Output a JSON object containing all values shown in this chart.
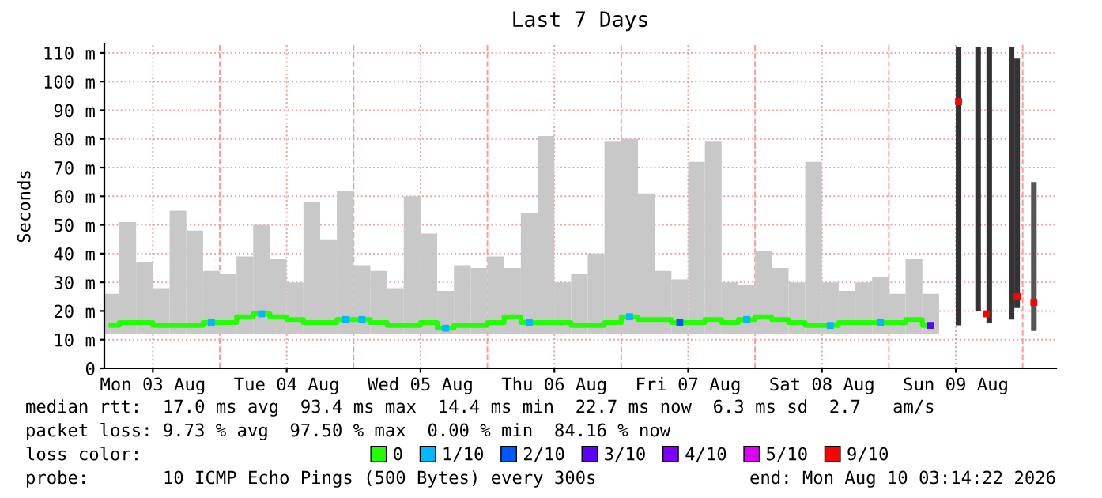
{
  "chart_data": {
    "type": "bar",
    "title": "Last 7 Days",
    "ylabel": "Seconds",
    "legend_title": "loss color:",
    "legend": "bottom",
    "grid": true,
    "xlim": [
      "2026-08-03T03:18",
      "2026-08-10T06:00"
    ],
    "xticks": [
      {
        "value": "2026-08-03T12:00",
        "label": "Mon 03 Aug"
      },
      {
        "value": "2026-08-04T12:00",
        "label": "Tue 04 Aug"
      },
      {
        "value": "2026-08-05T12:00",
        "label": "Wed 05 Aug"
      },
      {
        "value": "2026-08-06T12:00",
        "label": "Thu 06 Aug"
      },
      {
        "value": "2026-08-07T12:00",
        "label": "Fri 07 Aug"
      },
      {
        "value": "2026-08-08T12:00",
        "label": "Sat 08 Aug"
      },
      {
        "value": "2026-08-09T12:00",
        "label": "Sun 09 Aug"
      }
    ],
    "ylim": [
      0,
      113
    ],
    "yticks": [
      0,
      {
        "value": 10,
        "label": "10 m"
      },
      {
        "value": 20,
        "label": "20 m"
      },
      {
        "value": 30,
        "label": "30 m"
      },
      {
        "value": 40,
        "label": "40 m"
      },
      {
        "value": 50,
        "label": "50 m"
      },
      {
        "value": 60,
        "label": "60 m"
      },
      {
        "value": 70,
        "label": "70 m"
      },
      {
        "value": 80,
        "label": "80 m"
      },
      {
        "value": 90,
        "label": "90 m"
      },
      {
        "value": 100,
        "label": "100 m"
      },
      {
        "value": 110,
        "label": "110 m"
      }
    ],
    "ref_lines": [
      {
        "axis": "x",
        "value": "2026-08-04T00:00",
        "color": "#ff9999",
        "line_style": "dashed"
      },
      {
        "axis": "x",
        "value": "2026-08-05T00:00",
        "color": "#ff9999",
        "line_style": "dashed"
      },
      {
        "axis": "x",
        "value": "2026-08-06T00:00",
        "color": "#ff9999",
        "line_style": "dashed"
      },
      {
        "axis": "x",
        "value": "2026-08-07T00:00",
        "color": "#ff9999",
        "line_style": "dashed"
      },
      {
        "axis": "x",
        "value": "2026-08-08T00:00",
        "color": "#ff9999",
        "line_style": "dashed"
      },
      {
        "axis": "x",
        "value": "2026-08-09T00:00",
        "color": "#ff9999",
        "line_style": "dashed"
      },
      {
        "axis": "x",
        "value": "2026-08-10T00:00",
        "color": "#ff9999",
        "line_style": "dashed"
      }
    ],
    "series": [
      {
        "color": "#c8c8c8",
        "x": [
          "2026-08-03T04:30",
          "2026-08-03T07:30",
          "2026-08-03T10:30",
          "2026-08-03T13:30",
          "2026-08-03T16:30",
          "2026-08-03T19:30",
          "2026-08-03T22:30",
          "2026-08-04T01:30",
          "2026-08-04T04:30",
          "2026-08-04T07:30",
          "2026-08-04T10:30",
          "2026-08-04T13:30",
          "2026-08-04T16:30",
          "2026-08-04T19:30",
          "2026-08-04T22:30",
          "2026-08-05T01:30",
          "2026-08-05T04:30",
          "2026-08-05T07:30",
          "2026-08-05T10:30",
          "2026-08-05T13:30",
          "2026-08-05T16:30",
          "2026-08-05T19:30",
          "2026-08-05T22:30",
          "2026-08-06T01:30",
          "2026-08-06T04:30",
          "2026-08-06T07:30",
          "2026-08-06T10:30",
          "2026-08-06T13:30",
          "2026-08-06T16:30",
          "2026-08-06T19:30",
          "2026-08-06T22:30",
          "2026-08-07T01:30",
          "2026-08-07T04:30",
          "2026-08-07T07:30",
          "2026-08-07T10:30",
          "2026-08-07T13:30",
          "2026-08-07T16:30",
          "2026-08-07T19:30",
          "2026-08-07T22:30",
          "2026-08-08T01:30",
          "2026-08-08T04:30",
          "2026-08-08T07:30",
          "2026-08-08T10:30",
          "2026-08-08T13:30",
          "2026-08-08T16:30",
          "2026-08-08T19:30",
          "2026-08-08T22:30",
          "2026-08-09T01:30",
          "2026-08-09T04:30",
          "2026-08-09T07:30"
        ],
        "base": [
          12,
          12,
          12,
          12,
          12,
          12,
          12,
          12,
          12,
          12,
          12,
          12,
          12,
          12,
          12,
          12,
          12,
          12,
          12,
          12,
          12,
          12,
          12,
          12,
          12,
          12,
          12,
          12,
          12,
          12,
          12,
          12,
          12,
          12,
          12,
          12,
          12,
          12,
          12,
          12,
          12,
          12,
          12,
          12,
          12,
          12,
          12,
          12,
          12,
          12
        ],
        "values": [
          14,
          39,
          25,
          16,
          43,
          36,
          22,
          21,
          27,
          38,
          26,
          18,
          46,
          33,
          50,
          24,
          22,
          16,
          48,
          35,
          15,
          24,
          23,
          27,
          23,
          42,
          69,
          18,
          21,
          28,
          67,
          68,
          49,
          22,
          19,
          60,
          67,
          18,
          17,
          29,
          23,
          18,
          60,
          18,
          15,
          18,
          20,
          14,
          26,
          14
        ]
      },
      {
        "type": "bar",
        "colors": [
          "#333333",
          "#333333",
          "#333333",
          "#333333",
          "#333333",
          "#555555"
        ],
        "x": [
          "2026-08-09T12:30",
          "2026-08-09T16:00",
          "2026-08-09T18:00",
          "2026-08-09T22:00",
          "2026-08-09T23:00",
          "2026-08-10T02:00"
        ],
        "base": [
          15,
          20,
          16,
          17,
          21,
          13
        ],
        "values": [
          97,
          92,
          96,
          95,
          87,
          52
        ]
      },
      {
        "type": "line",
        "name": "0",
        "color": "#22ff00",
        "marker": "none",
        "x": [
          "2026-08-03T04:30",
          "2026-08-03T07:30",
          "2026-08-03T10:30",
          "2026-08-03T13:30",
          "2026-08-03T16:30",
          "2026-08-03T19:30",
          "2026-08-03T22:30",
          "2026-08-04T01:30",
          "2026-08-04T04:30",
          "2026-08-04T07:30",
          "2026-08-04T10:30",
          "2026-08-04T13:30",
          "2026-08-04T16:30",
          "2026-08-04T19:30",
          "2026-08-04T22:30",
          "2026-08-05T01:30",
          "2026-08-05T04:30",
          "2026-08-05T07:30",
          "2026-08-05T10:30",
          "2026-08-05T13:30",
          "2026-08-05T16:30",
          "2026-08-05T19:30",
          "2026-08-05T22:30",
          "2026-08-06T01:30",
          "2026-08-06T04:30",
          "2026-08-06T07:30",
          "2026-08-06T10:30",
          "2026-08-06T13:30",
          "2026-08-06T16:30",
          "2026-08-06T19:30",
          "2026-08-06T22:30",
          "2026-08-07T01:30",
          "2026-08-07T04:30",
          "2026-08-07T07:30",
          "2026-08-07T10:30",
          "2026-08-07T13:30",
          "2026-08-07T16:30",
          "2026-08-07T19:30",
          "2026-08-07T22:30",
          "2026-08-08T01:30",
          "2026-08-08T04:30",
          "2026-08-08T07:30",
          "2026-08-08T10:30",
          "2026-08-08T13:30",
          "2026-08-08T16:30",
          "2026-08-08T19:30",
          "2026-08-08T22:30",
          "2026-08-09T01:30",
          "2026-08-09T04:30",
          "2026-08-09T07:30"
        ],
        "values": [
          15,
          16,
          16,
          15,
          15,
          15,
          16,
          16,
          18,
          19,
          18,
          17,
          16,
          16,
          17,
          17,
          16,
          15,
          15,
          16,
          14,
          15,
          15,
          16,
          18,
          16,
          16,
          16,
          15,
          15,
          16,
          18,
          17,
          17,
          16,
          16,
          17,
          16,
          17,
          18,
          17,
          16,
          15,
          15,
          16,
          16,
          16,
          16,
          17,
          15
        ]
      },
      {
        "type": "scatter",
        "name": "1/10",
        "color": "#00b8ff",
        "marker": "square",
        "x": [
          "2026-08-03T22:30",
          "2026-08-04T07:30",
          "2026-08-04T22:30",
          "2026-08-05T01:30",
          "2026-08-05T16:30",
          "2026-08-06T07:30",
          "2026-08-07T01:30",
          "2026-08-07T22:30",
          "2026-08-08T13:30",
          "2026-08-08T22:30"
        ],
        "values": [
          16,
          19,
          17,
          17,
          14,
          16,
          18,
          17,
          15,
          16
        ]
      },
      {
        "type": "scatter",
        "name": "2/10",
        "color": "#0059ff",
        "marker": "square",
        "x": [
          "2026-08-07T10:30"
        ],
        "values": [
          16
        ]
      },
      {
        "type": "scatter",
        "name": "3/10",
        "color": "#5e00ff",
        "marker": "square",
        "x": [
          "2026-08-09T07:30"
        ],
        "values": [
          15
        ]
      },
      {
        "type": "scatter",
        "name": "4/10",
        "color": "#7e00ff",
        "marker": "square"
      },
      {
        "type": "scatter",
        "name": "5/10",
        "color": "#dd00ff",
        "marker": "square"
      },
      {
        "type": "scatter",
        "name": "9/10",
        "color": "#ff0000",
        "marker": "square",
        "x": [
          "2026-08-09T12:30",
          "2026-08-09T17:30",
          "2026-08-09T23:00",
          "2026-08-10T02:00"
        ],
        "values": [
          93,
          19,
          25,
          23
        ]
      }
    ],
    "annotations": [
      "median rtt:  17.0 ms avg  93.4 ms max  14.4 ms min  22.7 ms now  6.3 ms sd  2.7   am/s",
      "packet loss: 9.73 % avg  97.50 % max  0.00 % min  84.16 % now",
      "probe:       10 ICMP Echo Pings (500 Bytes) every 300s",
      "end: Mon Aug 10 03:14:22 2026"
    ]
  }
}
